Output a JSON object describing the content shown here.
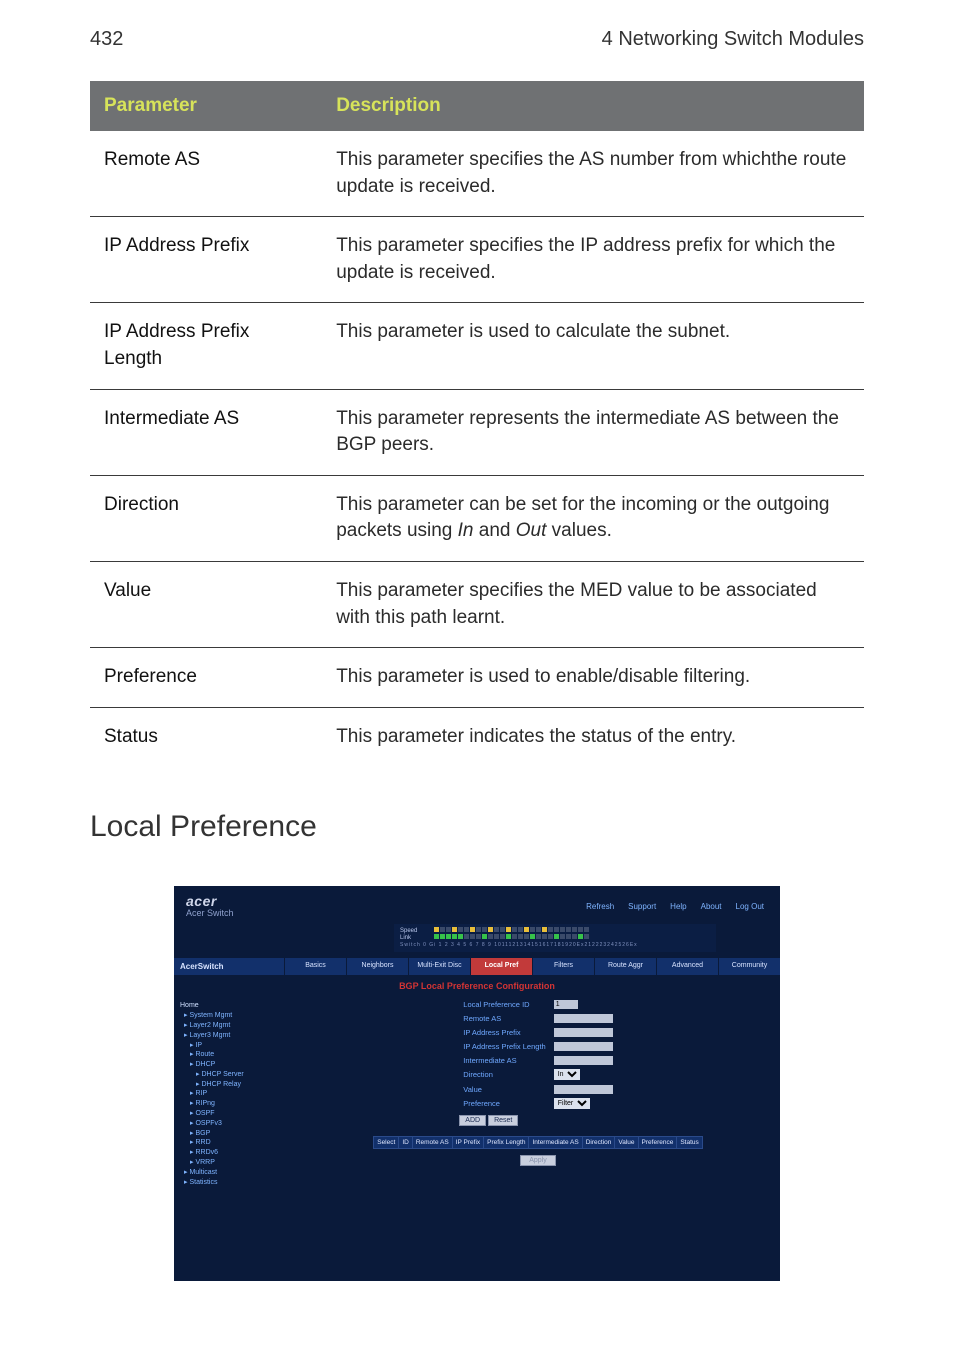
{
  "page_number": "432",
  "chapter_title": "4 Networking Switch Modules",
  "table": {
    "header_param": "Parameter",
    "header_desc": "Description",
    "header_bg": "#6f7173",
    "header_fg": "#d7e35a",
    "border_color": "#3a3a3a",
    "rows": [
      {
        "param": "Remote AS",
        "desc_pre": "This parameter specifies the AS number from whichthe route update is received."
      },
      {
        "param": "IP Address Prefix",
        "desc_pre": "This parameter specifies the IP address prefix for which the update is received."
      },
      {
        "param": "IP Address Prefix Length",
        "desc_pre": "This parameter is used to calculate the subnet."
      },
      {
        "param": "Intermediate AS",
        "desc_pre": "This parameter represents the intermediate AS between the BGP peers."
      },
      {
        "param": "Direction",
        "desc_pre": "This parameter can be set for the incoming or the outgoing packets using ",
        "italic1": "In",
        "mid": " and ",
        "italic2": "Out",
        "desc_post": " values."
      },
      {
        "param": "Value",
        "desc_pre": "This parameter specifies the MED value to be associated with this path learnt."
      },
      {
        "param": "Preference",
        "desc_pre": "This parameter is used to enable/disable filtering."
      },
      {
        "param": "Status",
        "desc_pre": "This parameter indicates the status of the entry."
      }
    ]
  },
  "heading_local_pref": "Local Preference",
  "screenshot": {
    "bg": "#0a1a3a",
    "brand_logo": "acer",
    "brand_sub": "Acer Switch",
    "toplinks": [
      "Refresh",
      "Support",
      "Help",
      "About",
      "Log Out"
    ],
    "port_labels": {
      "speed": "Speed",
      "link": "Link"
    },
    "port_numbers": "Switch 0 Gi 1 2 3 4 5 6 7 8 9 1011121314151617181920Ex212223242526Ex",
    "left_title": "AcerSwitch",
    "tabs": [
      "Basics",
      "Neighbors",
      "Multi-Exit Disc",
      "Local Pref",
      "Filters",
      "Route Aggr",
      "Advanced",
      "Community"
    ],
    "active_tab_index": 3,
    "tab_bg": "#12306b",
    "tab_active_bg": "#c23a3a",
    "bgp_title": "BGP Local Preference Configuration",
    "bgp_title_color": "#d23434",
    "sidebar": {
      "home": "Home",
      "items": [
        {
          "t": "System Mgmt",
          "lvl": 1
        },
        {
          "t": "Layer2 Mgmt",
          "lvl": 1
        },
        {
          "t": "Layer3 Mgmt",
          "lvl": 1
        },
        {
          "t": "IP",
          "lvl": 2
        },
        {
          "t": "Route",
          "lvl": 2
        },
        {
          "t": "DHCP",
          "lvl": 2
        },
        {
          "t": "DHCP Server",
          "lvl": 3
        },
        {
          "t": "DHCP Relay",
          "lvl": 3
        },
        {
          "t": "RIP",
          "lvl": 2
        },
        {
          "t": "RIPng",
          "lvl": 2
        },
        {
          "t": "OSPF",
          "lvl": 2
        },
        {
          "t": "OSPFv3",
          "lvl": 2
        },
        {
          "t": "BGP",
          "lvl": 2
        },
        {
          "t": "RRD",
          "lvl": 2
        },
        {
          "t": "RRDv6",
          "lvl": 2
        },
        {
          "t": "VRRP",
          "lvl": 2
        },
        {
          "t": "Multicast",
          "lvl": 1
        },
        {
          "t": "Statistics",
          "lvl": 1
        }
      ]
    },
    "form": {
      "rows": [
        {
          "label": "Local Preference ID",
          "type": "text",
          "value": "1",
          "small": true
        },
        {
          "label": "Remote AS",
          "type": "text",
          "value": ""
        },
        {
          "label": "IP Address Prefix",
          "type": "text",
          "value": ""
        },
        {
          "label": "IP Address Prefix Length",
          "type": "text",
          "value": ""
        },
        {
          "label": "Intermediate AS",
          "type": "text",
          "value": ""
        },
        {
          "label": "Direction",
          "type": "select",
          "value": "In"
        },
        {
          "label": "Value",
          "type": "text",
          "value": ""
        },
        {
          "label": "Preference",
          "type": "select",
          "value": "Filter"
        }
      ],
      "buttons": [
        "ADD",
        "Reset"
      ]
    },
    "grid_headers": [
      "Select",
      "ID",
      "Remote AS",
      "IP Prefix",
      "Prefix Length",
      "Intermediate AS",
      "Direction",
      "Value",
      "Preference",
      "Status"
    ],
    "apply_label": "Apply"
  }
}
